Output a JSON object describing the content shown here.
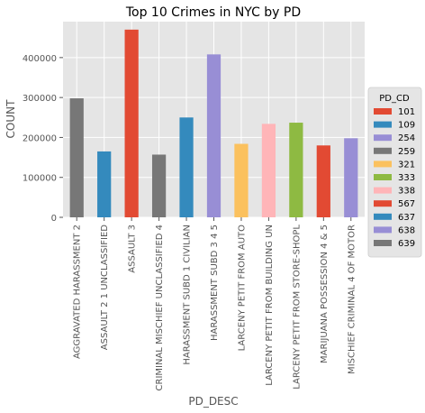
{
  "chart_data": {
    "type": "bar",
    "title": "Top 10 Crimes in NYC by PD",
    "xlabel": "PD_DESC",
    "ylabel": "COUNT",
    "ylim": [
      0,
      490000
    ],
    "yticks": [
      0,
      100000,
      200000,
      300000,
      400000
    ],
    "grid": true,
    "legend_placement": "right",
    "legend_title": "PD_CD",
    "legend": [
      {
        "label": "101",
        "color": "#e24a33"
      },
      {
        "label": "109",
        "color": "#348abd"
      },
      {
        "label": "254",
        "color": "#988ed5"
      },
      {
        "label": "259",
        "color": "#777777"
      },
      {
        "label": "321",
        "color": "#fbc15e"
      },
      {
        "label": "333",
        "color": "#8eba42"
      },
      {
        "label": "338",
        "color": "#ffb5b8"
      },
      {
        "label": "567",
        "color": "#e24a33"
      },
      {
        "label": "637",
        "color": "#348abd"
      },
      {
        "label": "638",
        "color": "#988ed5"
      },
      {
        "label": "639",
        "color": "#777777"
      }
    ],
    "categories": [
      "AGGRAVATED HARASSMENT 2",
      "ASSAULT 2 1 UNCLASSIFIED",
      "ASSAULT 3",
      "CRIMINAL MISCHIEF UNCLASSIFIED 4",
      "HARASSMENT SUBD 1 CIVILIAN",
      "HARASSMENT SUBD 3 4 5",
      "LARCENY PETIT FROM AUTO",
      "LARCENY PETIT FROM BUILDING UN",
      "LARCENY PETIT FROM STORE-SHOPL",
      "MARIJUANA  POSSESSION 4 & 5",
      "MISCHIEF  CRIMINAL 4  OF MOTOR"
    ],
    "values": [
      298000,
      165000,
      470000,
      157000,
      250000,
      408000,
      184000,
      234000,
      237000,
      180000,
      198000
    ],
    "bar_colors": [
      "#777777",
      "#348abd",
      "#e24a33",
      "#777777",
      "#348abd",
      "#988ed5",
      "#fbc15e",
      "#ffb5b8",
      "#8eba42",
      "#e24a33",
      "#988ed5"
    ],
    "colors": {
      "plot_background": "#e5e5e5",
      "grid": "#ffffff",
      "text": "#555555",
      "title": "#000000"
    }
  }
}
